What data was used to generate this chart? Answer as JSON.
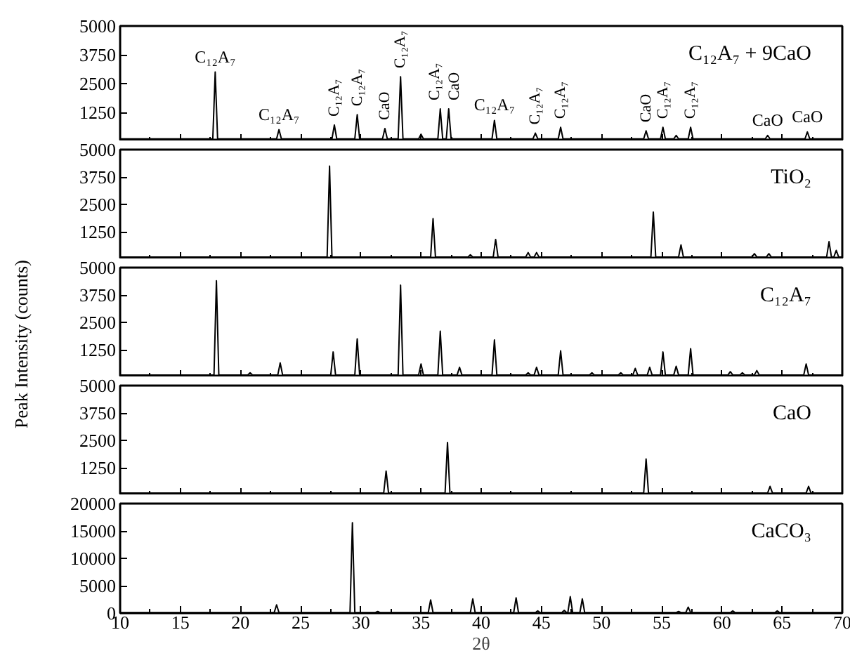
{
  "chart_data": [
    {
      "type": "line",
      "xlim": [
        10,
        70
      ],
      "xticks": [
        10,
        15,
        20,
        25,
        30,
        35,
        40,
        45,
        50,
        55,
        60,
        65,
        70
      ],
      "ylim": [
        0,
        5000
      ],
      "yticks": [
        1250,
        2500,
        3750,
        5000
      ],
      "tick_labels": "y",
      "series": [
        {
          "color": "#000000",
          "x": [
            10,
            17.7,
            17.9,
            18.1,
            23.0,
            23.2,
            23.4,
            27.6,
            27.8,
            28.0,
            29.5,
            29.7,
            29.9,
            31.8,
            32.0,
            32.2,
            33.1,
            33.3,
            33.5,
            34.8,
            35.0,
            35.2,
            36.4,
            36.6,
            36.8,
            37.1,
            37.3,
            37.5,
            40.9,
            41.1,
            41.3,
            44.3,
            44.5,
            44.7,
            46.4,
            46.6,
            46.8,
            53.5,
            53.7,
            53.9,
            54.9,
            55.1,
            55.3,
            56.0,
            56.2,
            56.4,
            57.2,
            57.4,
            57.6,
            63.6,
            63.8,
            64.0,
            66.9,
            67.1,
            67.3,
            70
          ],
          "values": [
            100,
            100,
            3000,
            100,
            100,
            500,
            100,
            100,
            700,
            100,
            100,
            1150,
            100,
            100,
            550,
            100,
            100,
            2800,
            100,
            100,
            300,
            100,
            100,
            1400,
            100,
            100,
            1400,
            100,
            100,
            900,
            100,
            100,
            350,
            100,
            100,
            600,
            100,
            100,
            450,
            100,
            100,
            600,
            100,
            100,
            250,
            100,
            100,
            600,
            100,
            100,
            250,
            100,
            100,
            400,
            100,
            100
          ]
        }
      ],
      "annotations": [
        "C₁₂A₇ + 9CaO",
        {
          "text": "C₁₂A₇",
          "x": 17.9,
          "y": 3000
        },
        {
          "text": "C₁₂A₇",
          "x": 23.2,
          "y": 500
        },
        {
          "text": "C₁₂A₇",
          "x": 27.8,
          "y": 700
        },
        {
          "text": "C₁₂A₇",
          "x": 29.7,
          "y": 1150
        },
        {
          "text": "CaO",
          "x": 32.0,
          "y": 550
        },
        {
          "text": "C₁₂A₇",
          "x": 33.3,
          "y": 2800
        },
        {
          "text": "C₁₂A₇",
          "x": 36.6,
          "y": 1400
        },
        {
          "text": "CaO",
          "x": 37.3,
          "y": 1400
        },
        {
          "text": "C₁₂A₇",
          "x": 41.1,
          "y": 900
        },
        {
          "text": "C₁₂A₇",
          "x": 44.5,
          "y": 350
        },
        {
          "text": "C₁₂A₇",
          "x": 46.6,
          "y": 600
        },
        {
          "text": "CaO",
          "x": 53.7,
          "y": 450
        },
        {
          "text": "C₁₂A₇",
          "x": 55.1,
          "y": 600
        },
        {
          "text": "C₁₂A₇",
          "x": 57.4,
          "y": 600
        },
        {
          "text": "CaO",
          "x": 63.8,
          "y": 250
        },
        {
          "text": "CaO",
          "x": 67.1,
          "y": 400
        }
      ]
    },
    {
      "type": "line",
      "xlim": [
        10,
        70
      ],
      "xticks": [
        10,
        15,
        20,
        25,
        30,
        35,
        40,
        45,
        50,
        55,
        60,
        65,
        70
      ],
      "ylim": [
        0,
        5000
      ],
      "yticks": [
        1250,
        2500,
        3750,
        5000
      ],
      "tick_labels": "y",
      "series": [
        {
          "color": "#000000",
          "x": [
            10,
            27.2,
            27.4,
            27.6,
            35.8,
            36.0,
            36.2,
            38.9,
            39.1,
            39.3,
            41.0,
            41.2,
            41.4,
            43.7,
            43.9,
            44.1,
            44.4,
            44.6,
            44.8,
            54.1,
            54.3,
            54.5,
            56.4,
            56.6,
            56.8,
            62.5,
            62.7,
            62.9,
            63.7,
            63.9,
            64.1,
            68.7,
            68.9,
            69.1,
            69.3,
            69.5,
            69.7,
            70
          ],
          "values": [
            100,
            100,
            4250,
            100,
            100,
            1850,
            100,
            100,
            200,
            100,
            100,
            900,
            100,
            100,
            300,
            100,
            100,
            300,
            100,
            100,
            2150,
            100,
            100,
            650,
            100,
            100,
            250,
            100,
            100,
            250,
            100,
            100,
            800,
            100,
            100,
            400,
            100,
            100
          ]
        }
      ],
      "annotations": [
        "TiO₂"
      ]
    },
    {
      "type": "line",
      "xlim": [
        10,
        70
      ],
      "xticks": [
        10,
        15,
        20,
        25,
        30,
        35,
        40,
        45,
        50,
        55,
        60,
        65,
        70
      ],
      "ylim": [
        0,
        5000
      ],
      "yticks": [
        1250,
        2500,
        3750,
        5000
      ],
      "tick_labels": "y",
      "ylabel": "Peak Intensity (counts)",
      "series": [
        {
          "color": "#000000",
          "x": [
            10,
            17.8,
            18.0,
            18.2,
            20.6,
            20.8,
            21.0,
            23.1,
            23.3,
            23.5,
            27.5,
            27.7,
            27.9,
            29.5,
            29.7,
            29.9,
            33.1,
            33.3,
            33.5,
            34.8,
            35.0,
            35.2,
            36.4,
            36.6,
            36.8,
            38.0,
            38.2,
            38.4,
            40.9,
            41.1,
            41.3,
            43.7,
            43.9,
            44.1,
            44.4,
            44.6,
            44.8,
            46.4,
            46.6,
            46.8,
            49.0,
            49.2,
            49.4,
            51.4,
            51.6,
            51.8,
            52.6,
            52.8,
            53.0,
            53.8,
            54.0,
            54.2,
            54.9,
            55.1,
            55.3,
            56.0,
            56.2,
            56.4,
            57.2,
            57.4,
            57.6,
            60.5,
            60.7,
            60.9,
            61.5,
            61.7,
            61.9,
            62.7,
            62.9,
            63.1,
            66.8,
            67.0,
            67.2,
            70
          ],
          "values": [
            100,
            100,
            4400,
            100,
            100,
            200,
            100,
            100,
            650,
            100,
            100,
            1150,
            100,
            100,
            1750,
            100,
            100,
            4200,
            100,
            100,
            600,
            100,
            100,
            2100,
            100,
            100,
            450,
            100,
            100,
            1700,
            100,
            100,
            200,
            100,
            100,
            450,
            100,
            100,
            1200,
            100,
            100,
            200,
            100,
            100,
            200,
            100,
            100,
            400,
            100,
            100,
            450,
            100,
            100,
            1150,
            100,
            100,
            500,
            100,
            100,
            1300,
            100,
            100,
            250,
            100,
            100,
            200,
            100,
            100,
            300,
            100,
            100,
            600,
            100,
            100
          ]
        }
      ],
      "annotations": [
        "C₁₂A₇"
      ]
    },
    {
      "type": "line",
      "xlim": [
        10,
        70
      ],
      "xticks": [
        10,
        15,
        20,
        25,
        30,
        35,
        40,
        45,
        50,
        55,
        60,
        65,
        70
      ],
      "ylim": [
        0,
        5000
      ],
      "yticks": [
        1250,
        2500,
        3750,
        5000
      ],
      "tick_labels": "y",
      "series": [
        {
          "color": "#000000",
          "x": [
            10,
            31.9,
            32.1,
            32.3,
            37.0,
            37.2,
            37.4,
            53.5,
            53.7,
            53.9,
            63.8,
            64.0,
            64.2,
            67.0,
            67.2,
            67.4,
            70
          ],
          "values": [
            100,
            100,
            1100,
            100,
            100,
            2400,
            100,
            100,
            1650,
            100,
            100,
            400,
            100,
            100,
            400,
            100,
            100
          ]
        }
      ],
      "annotations": [
        "CaO"
      ]
    },
    {
      "type": "line",
      "xlim": [
        10,
        70
      ],
      "xticks": [
        10,
        15,
        20,
        25,
        30,
        35,
        40,
        45,
        50,
        55,
        60,
        65,
        70
      ],
      "ylim": [
        0,
        20000
      ],
      "yticks": [
        0,
        5000,
        10000,
        15000,
        20000
      ],
      "xlabel": "2θ",
      "series": [
        {
          "color": "#000000",
          "x": [
            10,
            22.8,
            23.0,
            23.2,
            29.1,
            29.3,
            29.5,
            31.2,
            31.4,
            31.6,
            35.6,
            35.8,
            36.0,
            39.1,
            39.3,
            39.5,
            42.7,
            42.9,
            43.1,
            44.5,
            44.7,
            44.9,
            46.7,
            46.9,
            47.1,
            47.2,
            47.4,
            47.6,
            48.2,
            48.4,
            48.6,
            56.2,
            56.4,
            56.6,
            57.0,
            57.2,
            57.4,
            60.7,
            60.9,
            61.1,
            64.4,
            64.6,
            64.8,
            70
          ],
          "values": [
            100,
            100,
            1500,
            100,
            100,
            16500,
            100,
            100,
            300,
            100,
            100,
            2400,
            100,
            100,
            2600,
            100,
            100,
            2800,
            100,
            100,
            400,
            100,
            100,
            500,
            100,
            100,
            3000,
            100,
            100,
            2600,
            100,
            100,
            300,
            100,
            100,
            1100,
            100,
            100,
            400,
            100,
            100,
            400,
            100,
            100
          ]
        }
      ],
      "annotations": [
        "CaCO₃"
      ]
    }
  ]
}
